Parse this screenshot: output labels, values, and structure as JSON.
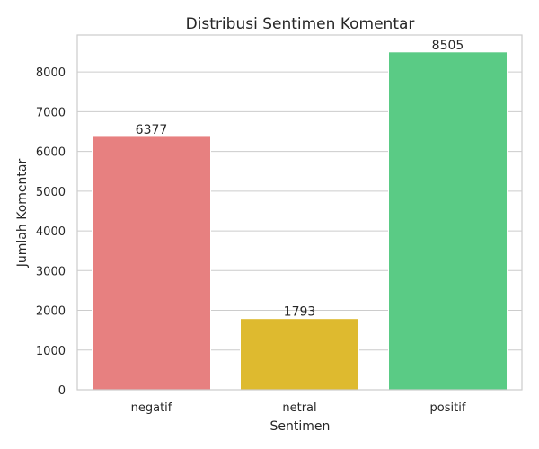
{
  "chart_data": {
    "type": "bar",
    "title": "Distribusi Sentimen Komentar",
    "xlabel": "Sentimen",
    "ylabel": "Jumlah Komentar",
    "categories": [
      "negatif",
      "netral",
      "positif"
    ],
    "values": [
      6377,
      1793,
      8505
    ],
    "data_labels": [
      "6377",
      "1793",
      "8505"
    ],
    "colors": [
      "#e78080",
      "#deba2f",
      "#5acb85"
    ],
    "ylim": [
      0,
      8930
    ],
    "yticks": [
      0,
      1000,
      2000,
      3000,
      4000,
      5000,
      6000,
      7000,
      8000
    ],
    "ytick_labels": [
      "0",
      "1000",
      "2000",
      "3000",
      "4000",
      "5000",
      "6000",
      "7000",
      "8000"
    ],
    "grid": "y",
    "legend": "none"
  }
}
